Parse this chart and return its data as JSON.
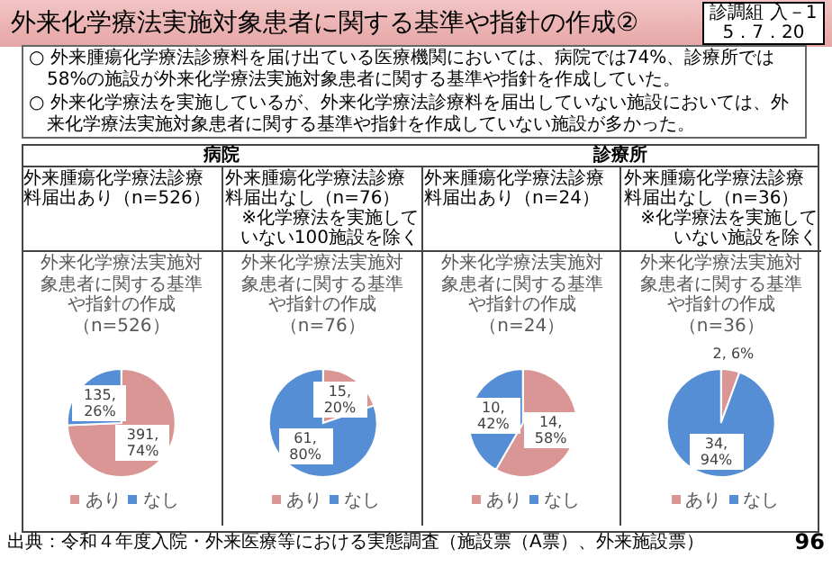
{
  "chart_data": [
    {
      "type": "pie",
      "title": "外来腫瘍化学療法診療料届出あり（n=526）",
      "subtitle": "外来化学療法実施対象患者に関する基準や指針の作成（n=526）",
      "categories": [
        "あり",
        "なし"
      ],
      "values": [
        391,
        135
      ],
      "colors": [
        "#d99694",
        "#558ed5"
      ],
      "value_labels": [
        "391, 74%",
        "135, 26%"
      ],
      "legend": "bottom",
      "annotations": [
        "外来化学療法実施対象患者に関する基準や指針の作成②",
        "診調組 入－1",
        "5．7．20",
        "○ 外来腫瘍化学療法診療料を届け出ている医療機関においては、病院では74%、診療所では58%の施設が外来化学療法実施対象患者に関する基準や指針を作成していた。",
        "○ 外来化学療法を実施しているが、外来化学療法診療料を届出していない施設においては、外来化学療法実施対象患者に関する基準や指針を作成していない施設が多かった。",
        "病院",
        "出典：令和４年度入院・外来医療等における実態調査（施設票（A票）、外来施設票）",
        "96"
      ]
    },
    {
      "type": "pie",
      "title": "外来腫瘍化学療法診療料届出なし（n=76）",
      "subtitle": "外来化学療法実施対象患者に関する基準や指針の作成（n=76）",
      "categories": [
        "あり",
        "なし"
      ],
      "values": [
        15,
        61
      ],
      "colors": [
        "#d99694",
        "#558ed5"
      ],
      "value_labels": [
        "15, 20%",
        "61, 80%"
      ],
      "legend": "bottom",
      "annotations": [
        "※化学療法を実施していない100施設を除く"
      ]
    },
    {
      "type": "pie",
      "title": "外来腫瘍化学療法診療料届出あり（n=24）",
      "subtitle": "外来化学療法実施対象患者に関する基準や指針の作成（n=24）",
      "categories": [
        "あり",
        "なし"
      ],
      "values": [
        14,
        10
      ],
      "colors": [
        "#d99694",
        "#558ed5"
      ],
      "value_labels": [
        "14, 58%",
        "10, 42%"
      ],
      "legend": "bottom",
      "annotations": [
        "診療所"
      ]
    },
    {
      "type": "pie",
      "title": "外来腫瘍化学療法診療料届出なし（n=36）",
      "subtitle": "外来化学療法実施対象患者に関する基準や指針の作成（n=36）",
      "categories": [
        "あり",
        "なし"
      ],
      "values": [
        2,
        34
      ],
      "colors": [
        "#d99694",
        "#558ed5"
      ],
      "value_labels": [
        "2, 6%",
        "34, 94%"
      ],
      "legend": "bottom",
      "annotations": [
        "※化学療法を実施していない施設を除く"
      ]
    }
  ]
}
